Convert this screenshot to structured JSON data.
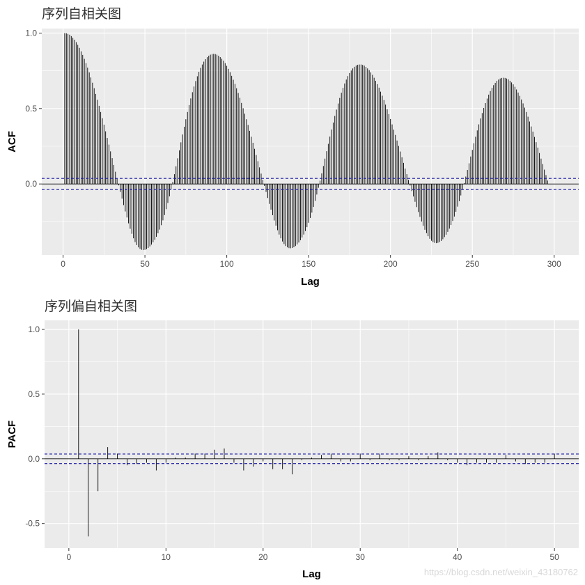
{
  "chart_data": [
    {
      "type": "bar",
      "title": "序列自相关图",
      "xlabel": "Lag",
      "ylabel": "ACF",
      "xlim": [
        -13,
        315
      ],
      "ylim": [
        -0.47,
        1.03
      ],
      "xticks": [
        0,
        50,
        100,
        150,
        200,
        250,
        300
      ],
      "xtick_labels": [
        "0",
        "50",
        "100",
        "150",
        "200",
        "250",
        "300"
      ],
      "yticks": [
        0.0,
        0.5,
        1.0
      ],
      "ytick_labels": [
        "0.0",
        "0.5",
        "1.0"
      ],
      "conf_limit": 0.037,
      "grid": true,
      "pattern": "periodic, period 96",
      "values": [
        1.0,
        0.999,
        0.995,
        0.989,
        0.98,
        0.969,
        0.956,
        0.94,
        0.922,
        0.902,
        0.879,
        0.855,
        0.829,
        0.801,
        0.771,
        0.739,
        0.706,
        0.671,
        0.635,
        0.597,
        0.558,
        0.518,
        0.477,
        0.435,
        0.393,
        0.349,
        0.305,
        0.261,
        0.216,
        0.171,
        0.126,
        0.081,
        0.036,
        -0.009,
        -0.053,
        -0.097,
        -0.14,
        -0.182,
        -0.222,
        -0.261,
        -0.297,
        -0.33,
        -0.36,
        -0.385,
        -0.405,
        -0.42,
        -0.43,
        -0.436,
        -0.438,
        -0.436,
        -0.432,
        -0.424,
        -0.414,
        -0.402,
        -0.387,
        -0.37,
        -0.35,
        -0.327,
        -0.302,
        -0.273,
        -0.241,
        -0.206,
        -0.167,
        -0.126,
        -0.082,
        -0.035,
        0.014,
        0.065,
        0.117,
        0.17,
        0.223,
        0.276,
        0.328,
        0.379,
        0.429,
        0.477,
        0.523,
        0.567,
        0.608,
        0.646,
        0.682,
        0.714,
        0.743,
        0.769,
        0.792,
        0.811,
        0.827,
        0.84,
        0.85,
        0.857,
        0.861,
        0.862,
        0.861,
        0.857,
        0.85,
        0.841,
        0.83,
        0.817,
        0.801,
        0.783,
        0.763,
        0.741,
        0.717,
        0.691,
        0.663,
        0.634,
        0.603,
        0.571,
        0.537,
        0.502,
        0.466,
        0.429,
        0.391,
        0.352,
        0.313,
        0.273,
        0.233,
        0.192,
        0.151,
        0.11,
        0.069,
        0.028,
        -0.013,
        -0.053,
        -0.093,
        -0.132,
        -0.17,
        -0.207,
        -0.242,
        -0.276,
        -0.307,
        -0.335,
        -0.36,
        -0.381,
        -0.398,
        -0.411,
        -0.42,
        -0.425,
        -0.426,
        -0.424,
        -0.419,
        -0.411,
        -0.401,
        -0.388,
        -0.373,
        -0.355,
        -0.335,
        -0.312,
        -0.286,
        -0.257,
        -0.225,
        -0.19,
        -0.152,
        -0.112,
        -0.07,
        -0.025,
        0.022,
        0.07,
        0.119,
        0.168,
        0.217,
        0.266,
        0.314,
        0.361,
        0.407,
        0.451,
        0.493,
        0.533,
        0.57,
        0.605,
        0.637,
        0.666,
        0.692,
        0.715,
        0.735,
        0.752,
        0.766,
        0.777,
        0.785,
        0.79,
        0.792,
        0.792,
        0.789,
        0.784,
        0.776,
        0.766,
        0.754,
        0.739,
        0.723,
        0.704,
        0.684,
        0.662,
        0.638,
        0.612,
        0.585,
        0.556,
        0.526,
        0.495,
        0.463,
        0.43,
        0.395,
        0.36,
        0.325,
        0.288,
        0.252,
        0.215,
        0.177,
        0.14,
        0.102,
        0.065,
        0.027,
        -0.01,
        -0.047,
        -0.083,
        -0.118,
        -0.153,
        -0.186,
        -0.218,
        -0.249,
        -0.277,
        -0.303,
        -0.326,
        -0.346,
        -0.363,
        -0.376,
        -0.385,
        -0.39,
        -0.392,
        -0.39,
        -0.385,
        -0.377,
        -0.366,
        -0.352,
        -0.336,
        -0.317,
        -0.296,
        -0.272,
        -0.245,
        -0.216,
        -0.184,
        -0.15,
        -0.114,
        -0.076,
        -0.036,
        0.006,
        0.049,
        0.093,
        0.137,
        0.182,
        0.226,
        0.27,
        0.313,
        0.355,
        0.395,
        0.434,
        0.47,
        0.504,
        0.536,
        0.566,
        0.592,
        0.616,
        0.637,
        0.655,
        0.67,
        0.683,
        0.692,
        0.699,
        0.703,
        0.704,
        0.703,
        0.699,
        0.693,
        0.684,
        0.673,
        0.66,
        0.644,
        0.626,
        0.606,
        0.584,
        0.56,
        0.534,
        0.506,
        0.477,
        0.446,
        0.414,
        0.381,
        0.347,
        0.312,
        0.277,
        0.241,
        0.205,
        0.168,
        0.132,
        0.095,
        0.059,
        0.023
      ]
    },
    {
      "type": "bar",
      "title": "序列偏自相关图",
      "xlabel": "Lag",
      "ylabel": "PACF",
      "xlim": [
        -2.5,
        52.5
      ],
      "ylim": [
        -0.69,
        1.07
      ],
      "xticks": [
        0,
        10,
        20,
        30,
        40,
        50
      ],
      "xtick_labels": [
        "0",
        "10",
        "20",
        "30",
        "40",
        "50"
      ],
      "yticks": [
        -0.5,
        0.0,
        0.5,
        1.0
      ],
      "ytick_labels": [
        "-0.5",
        "0.0",
        "0.5",
        "1.0"
      ],
      "conf_limit": 0.037,
      "grid": true,
      "values": [
        1.0,
        -0.6,
        -0.25,
        0.09,
        0.04,
        -0.05,
        -0.04,
        -0.03,
        -0.09,
        -0.03,
        0.01,
        0.01,
        0.04,
        0.04,
        0.07,
        0.08,
        -0.03,
        -0.09,
        -0.06,
        -0.02,
        -0.08,
        -0.08,
        -0.12,
        -0.01,
        0.01,
        0.03,
        0.04,
        -0.02,
        -0.02,
        0.04,
        -0.01,
        0.04,
        -0.01,
        -0.01,
        0.02,
        -0.01,
        0.02,
        0.05,
        -0.01,
        -0.03,
        -0.05,
        -0.03,
        -0.03,
        -0.03,
        0.03,
        -0.02,
        -0.04,
        -0.03,
        -0.03,
        0.04
      ]
    }
  ],
  "watermark": "https://blog.csdn.net/weixin_43180762",
  "colors": {
    "panel": "#ebebeb",
    "grid": "#ffffff",
    "bar": "#000000",
    "conf_line": "#1a1aa6",
    "zero_line": "#000000"
  }
}
